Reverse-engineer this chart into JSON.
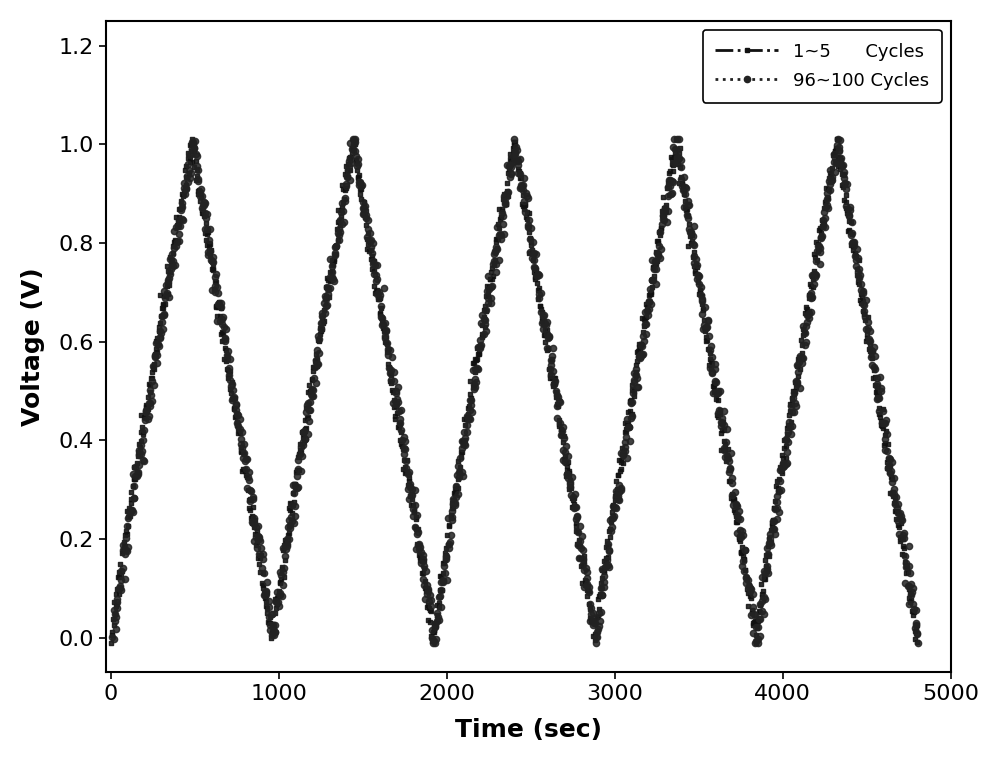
{
  "title": "",
  "xlabel": "Time (sec)",
  "ylabel": "Voltage (V)",
  "xlim": [
    -30,
    5000
  ],
  "ylim": [
    -0.07,
    1.25
  ],
  "xticks": [
    0,
    1000,
    2000,
    3000,
    4000,
    5000
  ],
  "yticks": [
    0.0,
    0.2,
    0.4,
    0.6,
    0.8,
    1.0,
    1.2
  ],
  "series1_label": "1~5      Cycles",
  "series2_label": "96~100 Cycles",
  "n_cycles": 5,
  "half_cycle": 480,
  "max_voltage": 1.0,
  "min_voltage": 0.0,
  "background_color": "#ffffff",
  "marker1": "s",
  "marker2": "o",
  "marker_size1": 3.5,
  "marker_size2": 4.5,
  "color1": "#111111",
  "color2": "#222222",
  "xlabel_fontsize": 18,
  "ylabel_fontsize": 18,
  "tick_fontsize": 16,
  "legend_fontsize": 13,
  "figsize": [
    10.0,
    7.63
  ],
  "dpi": 100
}
